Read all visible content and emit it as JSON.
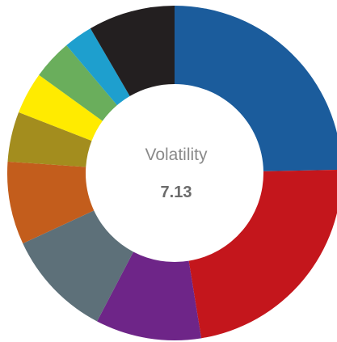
{
  "chart_data": {
    "type": "pie",
    "variant": "donut",
    "center": {
      "title": "Volatility",
      "value": "7.13"
    },
    "slices": [
      {
        "value": 25.6,
        "color": "#1b5c9c"
      },
      {
        "value": 23.6,
        "color": "#c4161c"
      },
      {
        "value": 10.6,
        "color": "#6e2588"
      },
      {
        "value": 10.8,
        "color": "#5d7079"
      },
      {
        "value": 8.3,
        "color": "#c35d1c"
      },
      {
        "value": 5.0,
        "color": "#a38d1e"
      },
      {
        "value": 4.2,
        "color": "#ffeb00"
      },
      {
        "value": 4.0,
        "color": "#6aae5c"
      },
      {
        "value": 2.9,
        "color": "#1e9fce"
      },
      {
        "value": 8.7,
        "color": "#231f20"
      }
    ]
  }
}
